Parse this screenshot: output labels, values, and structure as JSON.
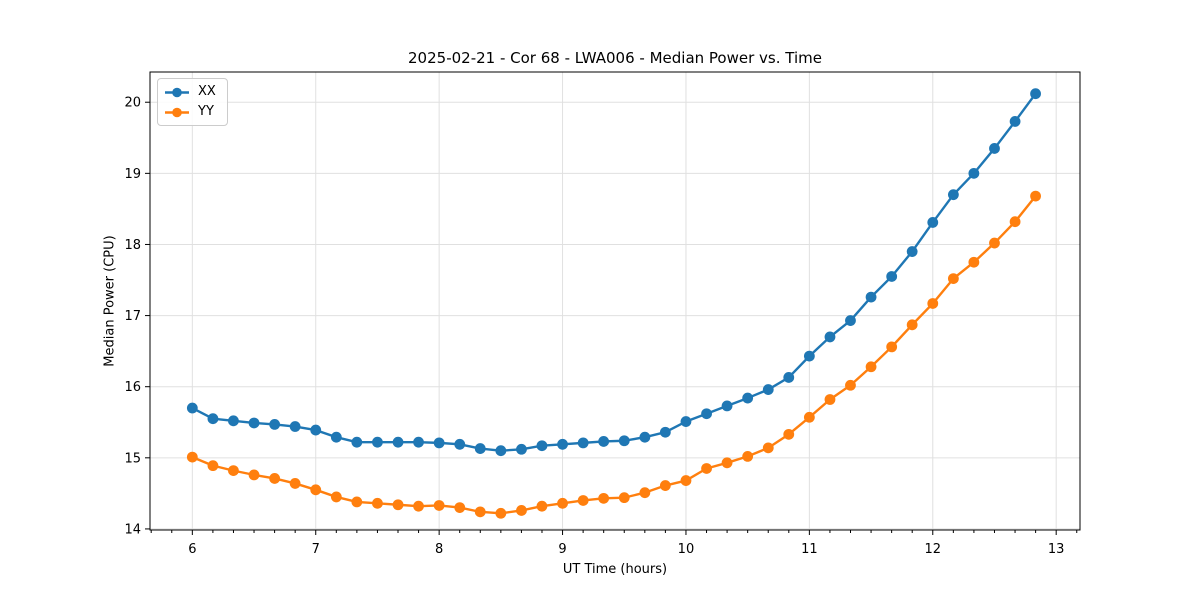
{
  "figure": {
    "background": "#ffffff",
    "text_color": "#000000",
    "grid_color": "#e0e0e0",
    "spine_color": "#000000"
  },
  "chart_data": {
    "type": "line",
    "title": "2025-02-21 - Cor 68 - LWA006 - Median Power vs. Time",
    "xlabel": "UT Time (hours)",
    "ylabel": "Median Power (CPU)",
    "xlim": [
      5.657,
      13.193
    ],
    "ylim": [
      13.985,
      20.425
    ],
    "x_ticks": [
      6,
      7,
      8,
      9,
      10,
      11,
      12,
      13
    ],
    "y_ticks": [
      14,
      15,
      16,
      17,
      18,
      19,
      20
    ],
    "x_minor_step": 0.1667,
    "grid": true,
    "legend_position": "upper-left",
    "marker": "circle",
    "x": [
      6.0,
      6.167,
      6.333,
      6.5,
      6.667,
      6.833,
      7.0,
      7.167,
      7.333,
      7.5,
      7.667,
      7.833,
      8.0,
      8.167,
      8.333,
      8.5,
      8.667,
      8.833,
      9.0,
      9.167,
      9.333,
      9.5,
      9.667,
      9.833,
      10.0,
      10.167,
      10.333,
      10.5,
      10.667,
      10.833,
      11.0,
      11.167,
      11.333,
      11.5,
      11.667,
      11.833,
      12.0,
      12.167,
      12.333,
      12.5,
      12.667,
      12.833
    ],
    "series": [
      {
        "name": "XX",
        "color": "#1f77b4",
        "values": [
          15.7,
          15.55,
          15.52,
          15.49,
          15.47,
          15.44,
          15.39,
          15.29,
          15.22,
          15.22,
          15.22,
          15.22,
          15.21,
          15.19,
          15.13,
          15.1,
          15.12,
          15.17,
          15.19,
          15.21,
          15.23,
          15.24,
          15.29,
          15.36,
          15.51,
          15.62,
          15.73,
          15.84,
          15.96,
          16.13,
          16.43,
          16.7,
          16.93,
          17.26,
          17.55,
          17.9,
          18.31,
          18.7,
          19.0,
          19.35,
          19.73,
          20.12
        ]
      },
      {
        "name": "YY",
        "color": "#ff7f0e",
        "values": [
          15.01,
          14.89,
          14.82,
          14.76,
          14.71,
          14.64,
          14.55,
          14.45,
          14.38,
          14.36,
          14.34,
          14.32,
          14.33,
          14.3,
          14.24,
          14.22,
          14.26,
          14.32,
          14.36,
          14.4,
          14.43,
          14.44,
          14.51,
          14.61,
          14.68,
          14.85,
          14.93,
          15.02,
          15.14,
          15.33,
          15.57,
          15.82,
          16.02,
          16.28,
          16.56,
          16.87,
          17.17,
          17.52,
          17.75,
          18.02,
          18.32,
          18.68
        ]
      }
    ]
  }
}
